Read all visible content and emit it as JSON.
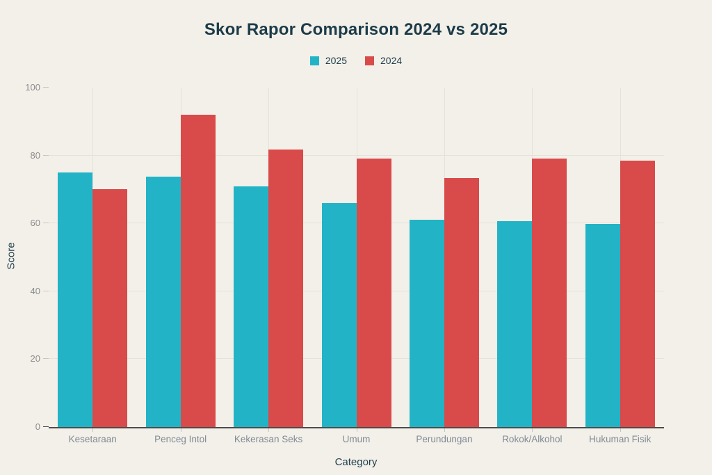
{
  "title": "Skor Rapor Comparison 2024 vs 2025",
  "legend": {
    "items": [
      {
        "label": "2025",
        "color": "#22b4c6"
      },
      {
        "label": "2024",
        "color": "#d94a4a"
      }
    ]
  },
  "colors": {
    "background": "#f2f0e9",
    "title_text": "#1d3b49",
    "axis_title_text": "#22404d",
    "tick_label": "#8c8c8c",
    "category_label": "#828a94",
    "gridline": "#e4e2da",
    "axis_line": "#4b4b4b",
    "tick_mark": "#c8c6bf",
    "series_2025": "#22b4c6",
    "series_2024": "#d94a4a"
  },
  "chart_data": {
    "type": "bar",
    "title": "Skor Rapor Comparison 2024 vs 2025",
    "xlabel": "Category",
    "ylabel": "Score",
    "categories": [
      "Kesetaraan",
      "Penceg Intol",
      "Kekerasan Seks",
      "Umum",
      "Perundungan",
      "Rokok/Alkohol",
      "Hukuman Fisik"
    ],
    "series": [
      {
        "name": "2025",
        "color": "#22b4c6",
        "values": [
          75,
          73.7,
          71,
          66,
          61,
          60.7,
          59.9
        ]
      },
      {
        "name": "2024",
        "color": "#d94a4a",
        "values": [
          70,
          92,
          81.8,
          79.1,
          73.4,
          79.2,
          78.5
        ]
      }
    ],
    "ylim": [
      0,
      100
    ],
    "yticks": [
      0,
      20,
      40,
      60,
      80,
      100
    ],
    "grid": true,
    "legend_position": "top-center"
  }
}
